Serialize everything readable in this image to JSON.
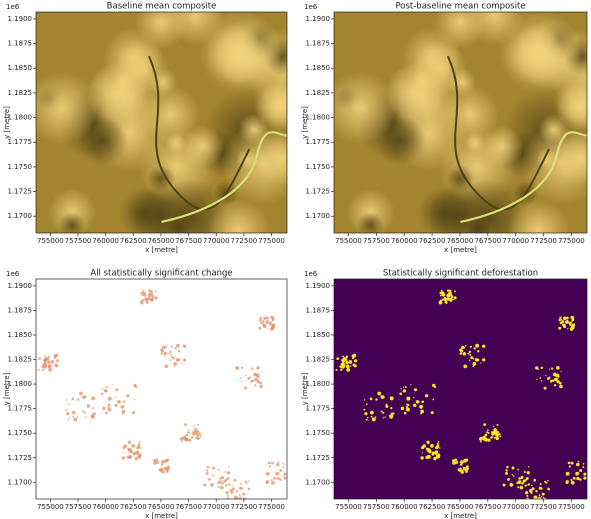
{
  "chart_data": [
    {
      "type": "image",
      "title": "Baseline mean composite",
      "xlabel": "x [metre]",
      "ylabel": "y [metre]",
      "offset_text": "1e6",
      "xlim": [
        753700,
        776400
      ],
      "ylim": [
        1.1683,
        1.1907
      ],
      "xticks": [
        755000,
        757500,
        760000,
        762500,
        765000,
        767500,
        770000,
        772500,
        775000
      ],
      "yticks": [
        {
          "value": 1.17,
          "label": "1.1700"
        },
        {
          "value": 1.1725,
          "label": "1.1725"
        },
        {
          "value": 1.175,
          "label": "1.1750"
        },
        {
          "value": 1.1775,
          "label": "1.1775"
        },
        {
          "value": 1.18,
          "label": "1.1800"
        },
        {
          "value": 1.1825,
          "label": "1.1825"
        },
        {
          "value": 1.185,
          "label": "1.1850"
        },
        {
          "value": 1.1875,
          "label": "1.1875"
        },
        {
          "value": 1.19,
          "label": "1.1900"
        }
      ]
    },
    {
      "type": "image",
      "title": "Post-baseline mean composite",
      "xlabel": "x [metre]",
      "ylabel": "y [metre]",
      "offset_text": "1e6",
      "xlim": [
        753700,
        776400
      ],
      "ylim": [
        1.1683,
        1.1907
      ],
      "xticks": [
        755000,
        757500,
        760000,
        762500,
        765000,
        767500,
        770000,
        772500,
        775000
      ],
      "yticks": [
        {
          "value": 1.17,
          "label": "1.1700"
        },
        {
          "value": 1.1725,
          "label": "1.1725"
        },
        {
          "value": 1.175,
          "label": "1.1750"
        },
        {
          "value": 1.1775,
          "label": "1.1775"
        },
        {
          "value": 1.18,
          "label": "1.1800"
        },
        {
          "value": 1.1825,
          "label": "1.1825"
        },
        {
          "value": 1.185,
          "label": "1.1850"
        },
        {
          "value": 1.1875,
          "label": "1.1875"
        },
        {
          "value": 1.19,
          "label": "1.1900"
        }
      ]
    },
    {
      "type": "image",
      "title": "All statistically significant change",
      "xlabel": "x [metre]",
      "ylabel": "y [metre]",
      "offset_text": "1e6",
      "xlim": [
        753700,
        776400
      ],
      "ylim": [
        1.1683,
        1.1907
      ],
      "xticks": [
        755000,
        757500,
        760000,
        762500,
        765000,
        767500,
        770000,
        772500,
        775000
      ],
      "yticks": [
        {
          "value": 1.17,
          "label": "1.1700"
        },
        {
          "value": 1.1725,
          "label": "1.1725"
        },
        {
          "value": 1.175,
          "label": "1.1750"
        },
        {
          "value": 1.1775,
          "label": "1.1775"
        },
        {
          "value": 1.18,
          "label": "1.1800"
        },
        {
          "value": 1.1825,
          "label": "1.1825"
        },
        {
          "value": 1.185,
          "label": "1.1850"
        },
        {
          "value": 1.1875,
          "label": "1.1875"
        },
        {
          "value": 1.19,
          "label": "1.1900"
        }
      ]
    },
    {
      "type": "image",
      "title": "Statistically significant deforestation",
      "xlabel": "x [metre]",
      "ylabel": "y [metre]",
      "offset_text": "1e6",
      "xlim": [
        753700,
        776400
      ],
      "ylim": [
        1.1683,
        1.1907
      ],
      "xticks": [
        755000,
        757500,
        760000,
        762500,
        765000,
        767500,
        770000,
        772500,
        775000
      ],
      "yticks": [
        {
          "value": 1.17,
          "label": "1.1700"
        },
        {
          "value": 1.1725,
          "label": "1.1725"
        },
        {
          "value": 1.175,
          "label": "1.1750"
        },
        {
          "value": 1.1775,
          "label": "1.1775"
        },
        {
          "value": 1.18,
          "label": "1.1800"
        },
        {
          "value": 1.1825,
          "label": "1.1825"
        },
        {
          "value": 1.185,
          "label": "1.1850"
        },
        {
          "value": 1.1875,
          "label": "1.1875"
        },
        {
          "value": 1.19,
          "label": "1.1900"
        }
      ]
    }
  ]
}
